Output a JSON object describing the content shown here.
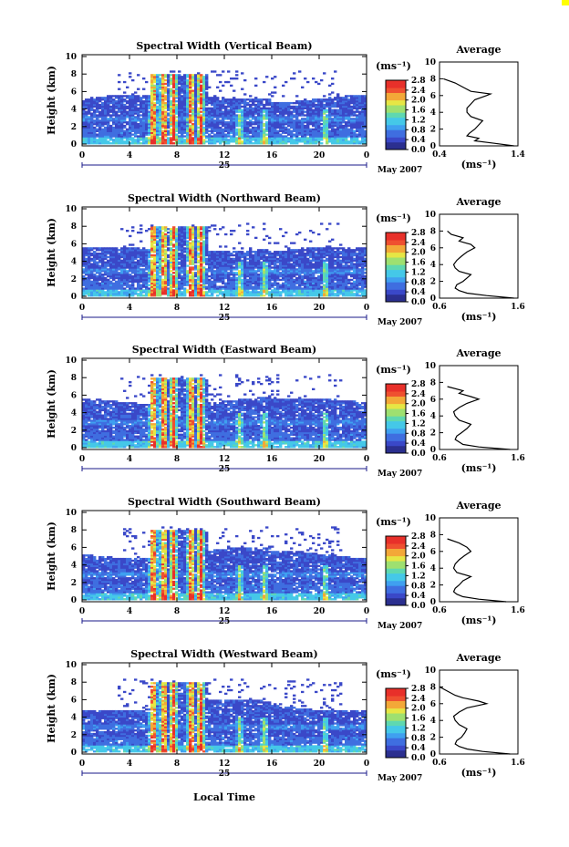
{
  "figure": {
    "month_label": "May 2007",
    "day_label": "25",
    "x_axis_title": "Local Time",
    "y_axis_title": "Height (km)",
    "colorbar_unit": "(ms⁻¹)",
    "profile_title": "Average",
    "profile_unit": "(ms⁻¹)",
    "corner_mark_color": "#ffff00"
  },
  "chart_data": [
    {
      "type": "heatmap",
      "title": "Spectral Width (Vertical Beam)",
      "xlabel": "",
      "ylabel": "Height (km)",
      "xlim": [
        0,
        24
      ],
      "ylim": [
        0,
        10
      ],
      "x_ticks": [
        "0",
        "4",
        "8",
        "12",
        "16",
        "20",
        "0"
      ],
      "y_ticks": [
        "0",
        "2",
        "4",
        "6",
        "8",
        "10"
      ],
      "colorbar": {
        "unit": "(ms⁻¹)",
        "ticks": [
          "0.0",
          "0.4",
          "0.8",
          "1.2",
          "1.6",
          "2.0",
          "2.4",
          "2.8"
        ],
        "range": [
          0,
          2.8
        ]
      },
      "profile": {
        "title": "Average",
        "xlabel": "(ms⁻¹)",
        "x_ticks": [
          "0.4",
          "1.4"
        ],
        "xlim": [
          0.4,
          1.4
        ],
        "ylim": [
          0,
          10
        ],
        "heights": [
          0,
          0.3,
          0.6,
          0.9,
          1.2,
          1.5,
          2,
          2.5,
          3,
          3.5,
          4,
          4.5,
          5,
          5.5,
          6,
          6.2,
          6.5,
          7,
          7.5,
          8
        ],
        "values": [
          1.35,
          1.1,
          0.85,
          0.9,
          0.75,
          0.78,
          0.85,
          0.9,
          0.95,
          0.8,
          0.75,
          0.75,
          0.8,
          0.85,
          1.0,
          1.05,
          0.8,
          0.7,
          0.6,
          0.45
        ]
      }
    },
    {
      "type": "heatmap",
      "title": "Spectral Width (Northward Beam)",
      "xlabel": "",
      "ylabel": "Height (km)",
      "xlim": [
        0,
        24
      ],
      "ylim": [
        0,
        10
      ],
      "x_ticks": [
        "0",
        "4",
        "8",
        "12",
        "16",
        "20",
        "0"
      ],
      "y_ticks": [
        "0",
        "2",
        "4",
        "6",
        "8",
        "10"
      ],
      "colorbar": {
        "unit": "(ms⁻¹)",
        "ticks": [
          "0.0",
          "0.4",
          "0.8",
          "1.2",
          "1.6",
          "2.0",
          "2.4",
          "2.8"
        ],
        "range": [
          0,
          2.8
        ]
      },
      "profile": {
        "title": "Average",
        "xlabel": "(ms⁻¹)",
        "x_ticks": [
          "0.6",
          "1.6"
        ],
        "xlim": [
          0.6,
          1.6
        ],
        "ylim": [
          0,
          10
        ],
        "heights": [
          0,
          0.3,
          0.6,
          0.9,
          1.2,
          1.6,
          2,
          2.4,
          2.8,
          3.2,
          3.6,
          4,
          4.5,
          5,
          5.5,
          6,
          6.4,
          6.8,
          7.2,
          7.6,
          8
        ],
        "values": [
          1.55,
          1.2,
          0.95,
          0.85,
          0.8,
          0.82,
          0.9,
          0.95,
          1.0,
          0.85,
          0.8,
          0.78,
          0.82,
          0.88,
          0.95,
          1.05,
          1.0,
          0.85,
          0.9,
          0.75,
          0.7
        ]
      }
    },
    {
      "type": "heatmap",
      "title": "Spectral Width (Eastward Beam)",
      "xlabel": "",
      "ylabel": "Height (km)",
      "xlim": [
        0,
        24
      ],
      "ylim": [
        0,
        10
      ],
      "x_ticks": [
        "0",
        "4",
        "8",
        "12",
        "16",
        "20",
        "0"
      ],
      "y_ticks": [
        "0",
        "2",
        "4",
        "6",
        "8",
        "10"
      ],
      "colorbar": {
        "unit": "(ms⁻¹)",
        "ticks": [
          "0.0",
          "0.4",
          "0.8",
          "1.2",
          "1.6",
          "2.0",
          "2.4",
          "2.8"
        ],
        "range": [
          0,
          2.8
        ]
      },
      "profile": {
        "title": "Average",
        "xlabel": "(ms⁻¹)",
        "x_ticks": [
          "0.6",
          "1.6"
        ],
        "xlim": [
          0.6,
          1.6
        ],
        "ylim": [
          0,
          10
        ],
        "heights": [
          0,
          0.3,
          0.6,
          0.9,
          1.2,
          1.6,
          2,
          2.5,
          3,
          3.5,
          4,
          4.5,
          5,
          5.5,
          6,
          6.3,
          6.7,
          7,
          7.5
        ],
        "values": [
          1.5,
          1.1,
          0.9,
          0.85,
          0.8,
          0.82,
          0.88,
          0.95,
          1.0,
          0.85,
          0.8,
          0.78,
          0.85,
          0.95,
          1.1,
          1.0,
          0.85,
          0.9,
          0.7
        ]
      }
    },
    {
      "type": "heatmap",
      "title": "Spectral Width (Southward Beam)",
      "xlabel": "",
      "ylabel": "Height (km)",
      "xlim": [
        0,
        24
      ],
      "ylim": [
        0,
        10
      ],
      "x_ticks": [
        "0",
        "4",
        "8",
        "12",
        "16",
        "20",
        "0"
      ],
      "y_ticks": [
        "0",
        "2",
        "4",
        "6",
        "8",
        "10"
      ],
      "colorbar": {
        "unit": "(ms⁻¹)",
        "ticks": [
          "0.0",
          "0.4",
          "0.8",
          "1.2",
          "1.6",
          "2.0",
          "2.4",
          "2.8"
        ],
        "range": [
          0,
          2.8
        ]
      },
      "profile": {
        "title": "Average",
        "xlabel": "(ms⁻¹)",
        "x_ticks": [
          "0.6",
          "1.6"
        ],
        "xlim": [
          0.6,
          1.6
        ],
        "ylim": [
          0,
          10
        ],
        "heights": [
          0,
          0.3,
          0.6,
          0.9,
          1.2,
          1.6,
          2,
          2.5,
          3,
          3.5,
          4,
          4.5,
          5,
          5.5,
          6,
          6.5,
          7,
          7.5
        ],
        "values": [
          1.45,
          1.1,
          0.9,
          0.82,
          0.78,
          0.8,
          0.85,
          0.9,
          1.0,
          0.82,
          0.78,
          0.8,
          0.85,
          0.92,
          1.0,
          0.95,
          0.85,
          0.7
        ]
      }
    },
    {
      "type": "heatmap",
      "title": "Spectral Width (Westward Beam)",
      "xlabel": "Local Time",
      "ylabel": "Height (km)",
      "xlim": [
        0,
        24
      ],
      "ylim": [
        0,
        10
      ],
      "x_ticks": [
        "0",
        "4",
        "8",
        "12",
        "16",
        "20",
        "0"
      ],
      "y_ticks": [
        "0",
        "2",
        "4",
        "6",
        "8",
        "10"
      ],
      "colorbar": {
        "unit": "(ms⁻¹)",
        "ticks": [
          "0.0",
          "0.4",
          "0.8",
          "1.2",
          "1.6",
          "2.0",
          "2.4",
          "2.8"
        ],
        "range": [
          0,
          2.8
        ]
      },
      "profile": {
        "title": "Average",
        "xlabel": "(ms⁻¹)",
        "x_ticks": [
          "0.6",
          "1.6"
        ],
        "xlim": [
          0.6,
          1.6
        ],
        "ylim": [
          0,
          10
        ],
        "heights": [
          0,
          0.3,
          0.6,
          0.9,
          1.2,
          1.6,
          2,
          2.5,
          3,
          3.5,
          4,
          4.5,
          5,
          5.5,
          6,
          6.3,
          6.7,
          7,
          7.5,
          8
        ],
        "values": [
          1.5,
          1.15,
          0.95,
          0.85,
          0.8,
          0.82,
          0.88,
          0.92,
          0.95,
          0.85,
          0.8,
          0.78,
          0.85,
          0.95,
          1.2,
          1.1,
          0.9,
          0.8,
          0.7,
          0.6
        ]
      }
    }
  ]
}
